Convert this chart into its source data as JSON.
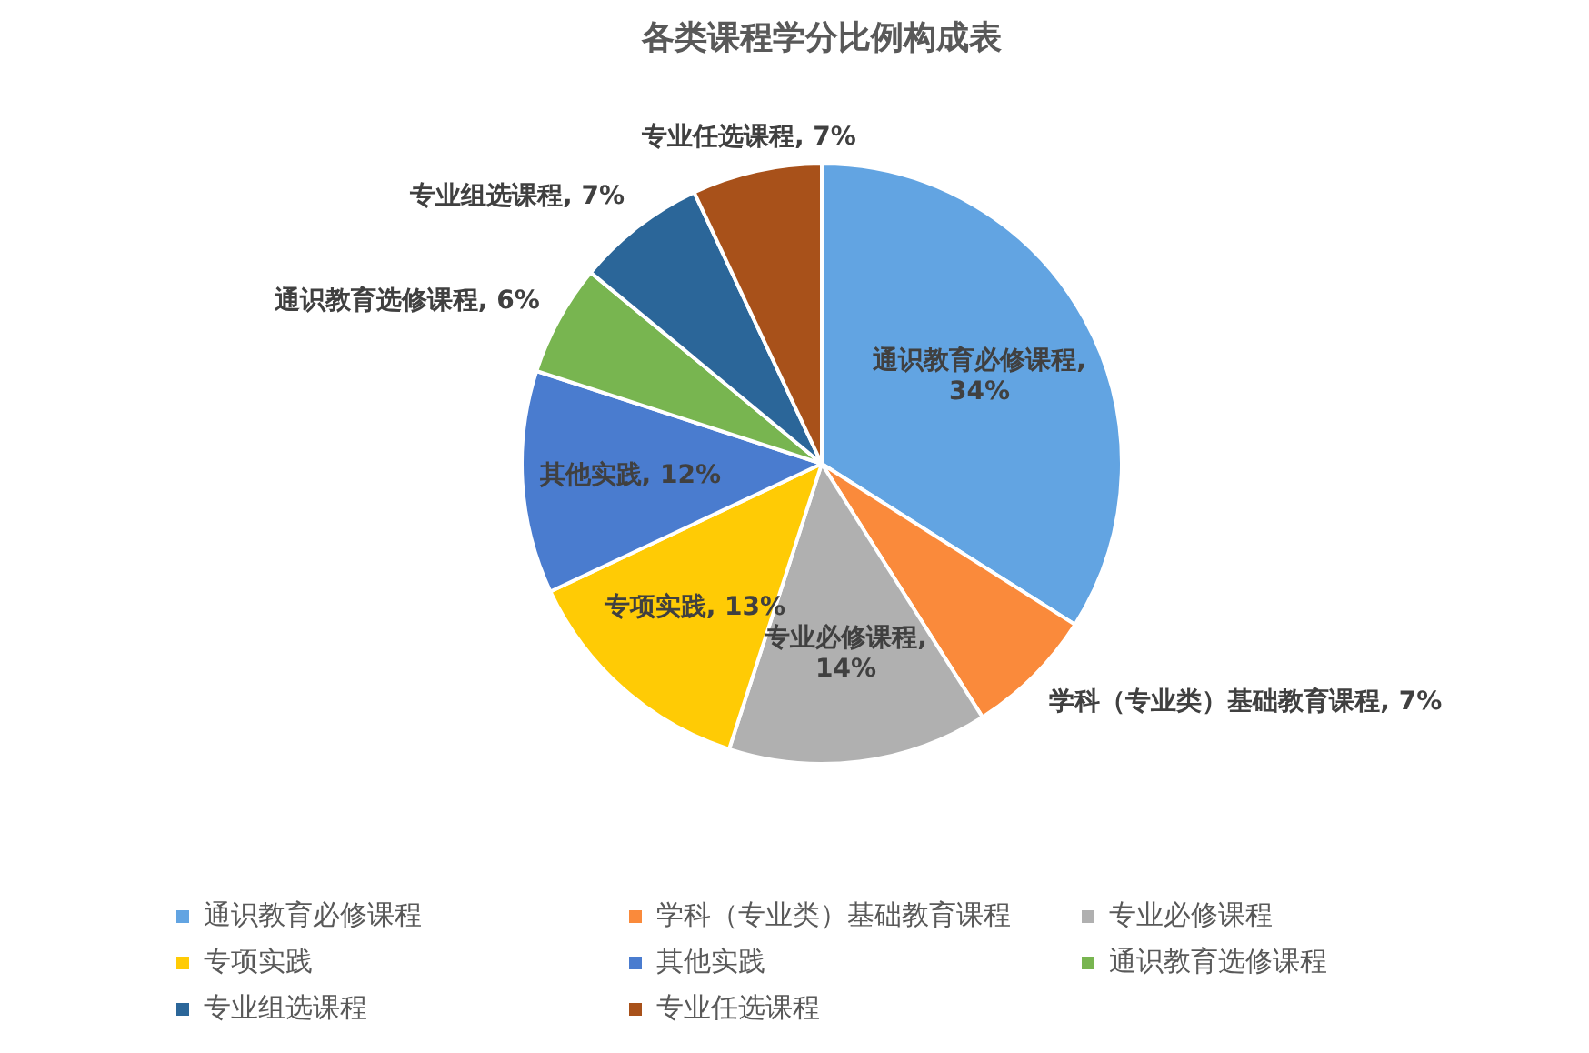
{
  "chart_data": {
    "type": "pie",
    "title": "各类课程学分比例构成表",
    "categories": [
      "通识教育必修课程",
      "学科（专业类）基础教育课程",
      "专业必修课程",
      "专项实践",
      "其他实践",
      "通识教育选修课程",
      "专业组选课程",
      "专业任选课程"
    ],
    "values": [
      34,
      7,
      14,
      13,
      12,
      6,
      7,
      7
    ],
    "value_labels": [
      "通识教育必修课程, 34%",
      "学科（专业类）基础教育课程, 7%",
      "专业必修课程, 14%",
      "专项实践, 13%",
      "其他实践, 12%",
      "通识教育选修课程, 6%",
      "专业组选课程, 7%",
      "专业任选课程, 7%"
    ],
    "colors": [
      "#62a4e2",
      "#fa8a3b",
      "#b0b0b0",
      "#ffcb05",
      "#4a7ccf",
      "#78b550",
      "#2b6699",
      "#a8511a"
    ],
    "legend": "bottom"
  }
}
